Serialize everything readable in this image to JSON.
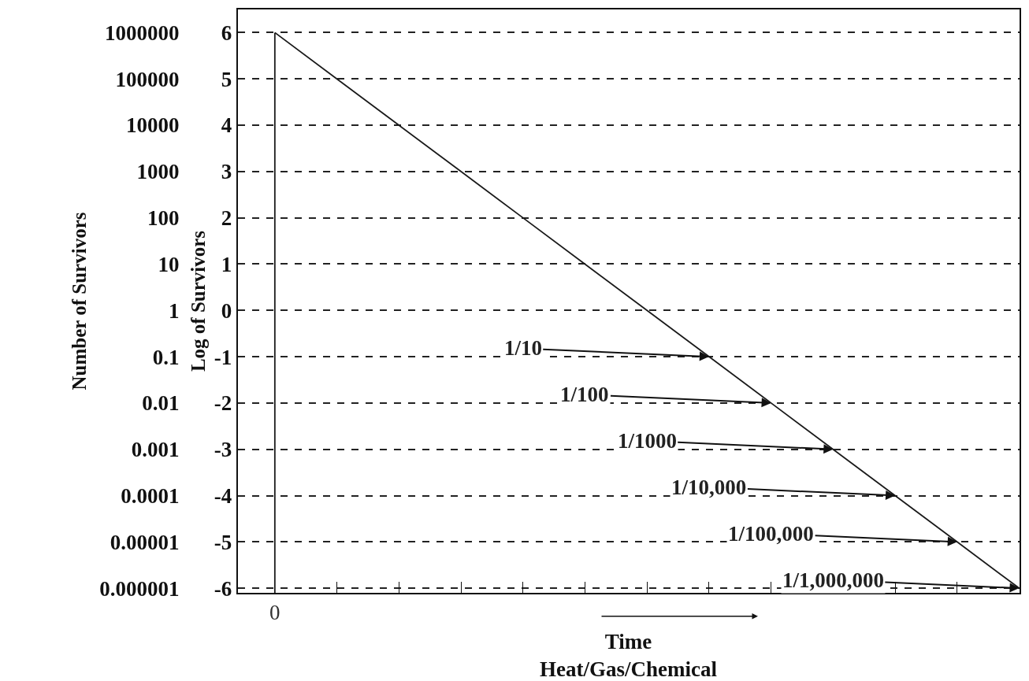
{
  "chart_data": {
    "type": "line",
    "xlabel": "Time",
    "subtitle": "Heat/Gas/Chemical",
    "ylabel": "Log of Survivors",
    "y2label": "Number of Survivors",
    "categories": [
      "0",
      null,
      null,
      null,
      null,
      null,
      null,
      null,
      null,
      null,
      null,
      null,
      null
    ],
    "series": [
      {
        "color": "#1a1a1a",
        "values": [
          6,
          5,
          4,
          3,
          2,
          1,
          0,
          -1,
          -2,
          -3,
          -4,
          -5,
          -6
        ]
      }
    ],
    "ylim": [
      -6.1,
      6.5
    ],
    "yticks": [
      -6,
      -5,
      -4,
      -3,
      -2,
      -1,
      0,
      1,
      2,
      3,
      4,
      5,
      6
    ],
    "y2lim": [
      7.94e-07,
      3162278
    ],
    "log": "y2",
    "y2ticks": [
      {
        "value": 1000000,
        "label": "1000000"
      },
      {
        "value": 100000,
        "label": "100000"
      },
      {
        "value": 10000,
        "label": "10000"
      },
      {
        "value": 1000,
        "label": "1000"
      },
      {
        "value": 100,
        "label": "100"
      },
      {
        "value": 10,
        "label": "10"
      },
      {
        "value": 1,
        "label": "1"
      },
      {
        "value": 0.1,
        "label": "0.1"
      },
      {
        "value": 0.01,
        "label": "0.01"
      },
      {
        "value": 0.001,
        "label": "0.001"
      },
      {
        "value": 0.0001,
        "label": "0.0001"
      },
      {
        "value": 1e-05,
        "label": "0.00001"
      },
      {
        "value": 1e-06,
        "label": "0.000001"
      }
    ],
    "ref_lines": [
      {
        "axis": "x",
        "value": "0",
        "color": "#1a1a1a",
        "line_style": "solid"
      }
    ],
    "grid": "y",
    "line_style": "solid",
    "legend": false,
    "annotations": [
      "1/10",
      "1/100",
      "1/1000",
      "1/10,000",
      "1/100,000",
      "1/1,000,000"
    ]
  }
}
